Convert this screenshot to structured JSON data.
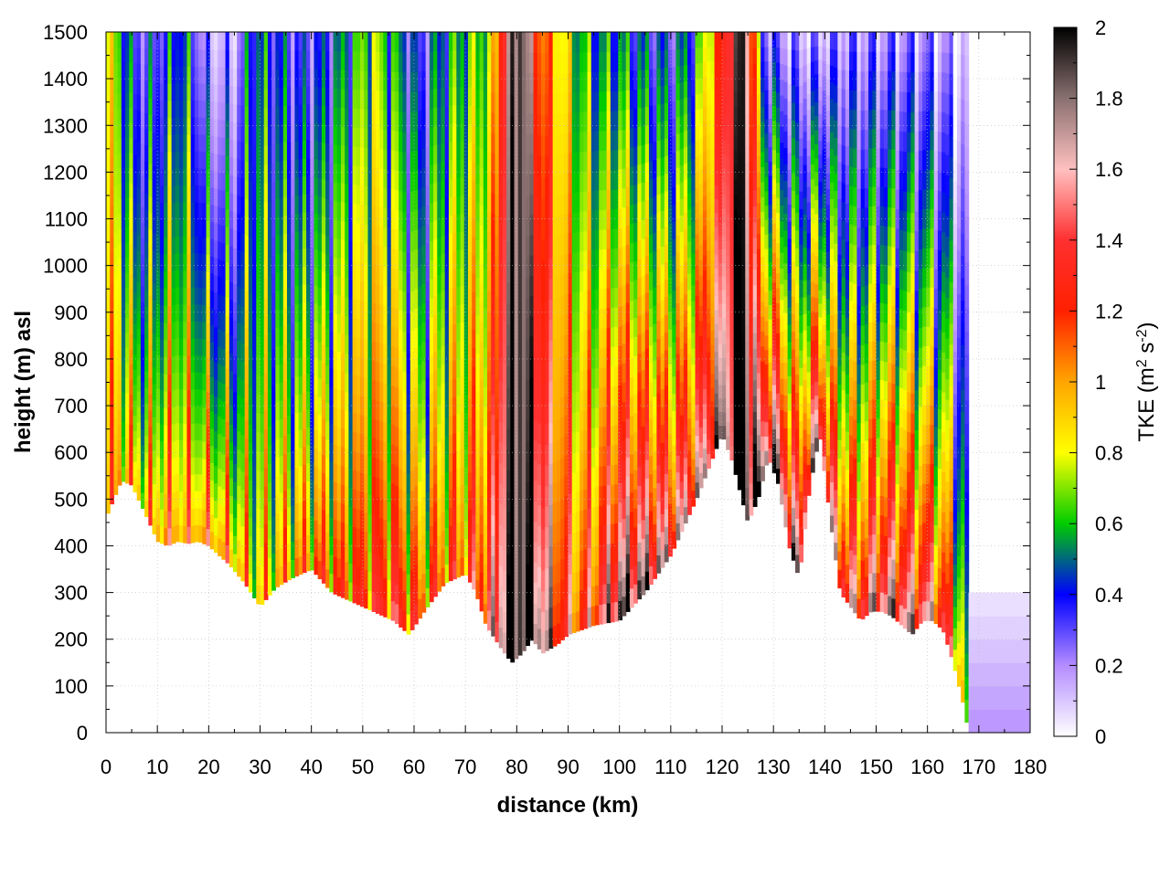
{
  "chart_data": {
    "type": "heatmap",
    "title": "",
    "xlabel": "distance (km)",
    "ylabel": "height (m) asl",
    "xlim": [
      0,
      180
    ],
    "ylim": [
      0,
      1500
    ],
    "x_ticks": [
      0,
      10,
      20,
      30,
      40,
      50,
      60,
      70,
      80,
      90,
      100,
      110,
      120,
      130,
      140,
      150,
      160,
      170,
      180
    ],
    "y_ticks": [
      0,
      100,
      200,
      300,
      400,
      500,
      600,
      700,
      800,
      900,
      1000,
      1100,
      1200,
      1300,
      1400,
      1500
    ],
    "grid": true,
    "colorbar": {
      "label_main": "TKE (m",
      "label_sup1": "2",
      "label_mid": " s",
      "label_sup2": "-2",
      "label_end": ")",
      "min": 0,
      "max": 2,
      "ticks": [
        0,
        0.2,
        0.4,
        0.6,
        0.8,
        1,
        1.2,
        1.4,
        1.6,
        1.8,
        2
      ],
      "colormap": [
        {
          "v": 0.0,
          "color": "#ffffff"
        },
        {
          "v": 0.2,
          "color": "#b48cff"
        },
        {
          "v": 0.4,
          "color": "#0000ff"
        },
        {
          "v": 0.6,
          "color": "#00cc00"
        },
        {
          "v": 0.8,
          "color": "#ffff00"
        },
        {
          "v": 1.0,
          "color": "#ffa500"
        },
        {
          "v": 1.2,
          "color": "#ff2000"
        },
        {
          "v": 1.4,
          "color": "#ff3030"
        },
        {
          "v": 1.6,
          "color": "#ffc0c0"
        },
        {
          "v": 1.8,
          "color": "#8a7070"
        },
        {
          "v": 2.0,
          "color": "#000000"
        }
      ]
    },
    "terrain": {
      "description_points_x": [
        0,
        3,
        5,
        8,
        10,
        12,
        14,
        16,
        18,
        20,
        24,
        27,
        30,
        33,
        36,
        40,
        44,
        48,
        52,
        56,
        59,
        62,
        66,
        70,
        72,
        74,
        77,
        79,
        81,
        83,
        85,
        88,
        90,
        95,
        100,
        105,
        110,
        115,
        120,
        122,
        125,
        127,
        129,
        131,
        133,
        135,
        137,
        139,
        141,
        143,
        145,
        147,
        149,
        151,
        153,
        155,
        157,
        159,
        161,
        163,
        165,
        167,
        168
      ],
      "description_points_height": [
        460,
        540,
        530,
        460,
        410,
        400,
        410,
        405,
        410,
        400,
        360,
        320,
        270,
        310,
        330,
        350,
        300,
        280,
        260,
        240,
        210,
        260,
        320,
        340,
        300,
        230,
        180,
        150,
        170,
        200,
        170,
        190,
        210,
        230,
        240,
        300,
        380,
        500,
        640,
        580,
        450,
        500,
        590,
        530,
        400,
        330,
        520,
        640,
        460,
        300,
        270,
        240,
        260,
        260,
        250,
        230,
        210,
        240,
        240,
        220,
        150,
        60,
        0
      ]
    },
    "pbl_top_height": 1500,
    "tke_columns": [
      {
        "x": 0,
        "surface": 0.9,
        "upper": 0.8
      },
      {
        "x": 2,
        "surface": 1.1,
        "upper": 0.7
      },
      {
        "x": 5,
        "surface": 1.0,
        "upper": 0.35
      },
      {
        "x": 8,
        "surface": 1.0,
        "upper": 0.3
      },
      {
        "x": 12,
        "surface": 1.2,
        "upper": 0.4
      },
      {
        "x": 15,
        "surface": 1.1,
        "upper": 0.5
      },
      {
        "x": 20,
        "surface": 1.2,
        "upper": 0.15
      },
      {
        "x": 25,
        "surface": 1.1,
        "upper": 0.15
      },
      {
        "x": 29,
        "surface": 0.9,
        "upper": 0.5
      },
      {
        "x": 33,
        "surface": 1.0,
        "upper": 0.4
      },
      {
        "x": 38,
        "surface": 1.1,
        "upper": 0.3
      },
      {
        "x": 42,
        "surface": 1.2,
        "upper": 0.35
      },
      {
        "x": 47,
        "surface": 1.2,
        "upper": 0.5
      },
      {
        "x": 52,
        "surface": 1.3,
        "upper": 0.7
      },
      {
        "x": 57,
        "surface": 1.4,
        "upper": 0.5
      },
      {
        "x": 61,
        "surface": 1.2,
        "upper": 0.3
      },
      {
        "x": 66,
        "surface": 1.2,
        "upper": 0.5
      },
      {
        "x": 70,
        "surface": 1.2,
        "upper": 0.6
      },
      {
        "x": 75,
        "surface": 1.5,
        "upper": 0.7
      },
      {
        "x": 78,
        "surface": 2.0,
        "upper": 1.6
      },
      {
        "x": 81,
        "surface": 2.0,
        "upper": 2.0
      },
      {
        "x": 84,
        "surface": 2.0,
        "upper": 1.2
      },
      {
        "x": 88,
        "surface": 1.4,
        "upper": 0.9
      },
      {
        "x": 92,
        "surface": 1.3,
        "upper": 0.6
      },
      {
        "x": 96,
        "surface": 1.5,
        "upper": 0.5
      },
      {
        "x": 100,
        "surface": 2.0,
        "upper": 0.5
      },
      {
        "x": 105,
        "surface": 1.9,
        "upper": 0.4
      },
      {
        "x": 110,
        "surface": 1.7,
        "upper": 0.35
      },
      {
        "x": 115,
        "surface": 1.7,
        "upper": 0.5
      },
      {
        "x": 120,
        "surface": 1.8,
        "upper": 1.2
      },
      {
        "x": 124,
        "surface": 2.0,
        "upper": 2.0
      },
      {
        "x": 128,
        "surface": 2.0,
        "upper": 0.3
      },
      {
        "x": 131,
        "surface": 2.0,
        "upper": 0.2
      },
      {
        "x": 135,
        "surface": 1.8,
        "upper": 0.15
      },
      {
        "x": 139,
        "surface": 1.8,
        "upper": 0.15
      },
      {
        "x": 143,
        "surface": 1.6,
        "upper": 0.2
      },
      {
        "x": 147,
        "surface": 1.6,
        "upper": 0.2
      },
      {
        "x": 151,
        "surface": 1.8,
        "upper": 0.2
      },
      {
        "x": 155,
        "surface": 1.8,
        "upper": 0.2
      },
      {
        "x": 159,
        "surface": 1.7,
        "upper": 0.2
      },
      {
        "x": 163,
        "surface": 1.5,
        "upper": 0.15
      },
      {
        "x": 166,
        "surface": 1.2,
        "upper": 0.1
      },
      {
        "x": 168,
        "surface": 0.5,
        "upper": 0.05
      }
    ]
  }
}
